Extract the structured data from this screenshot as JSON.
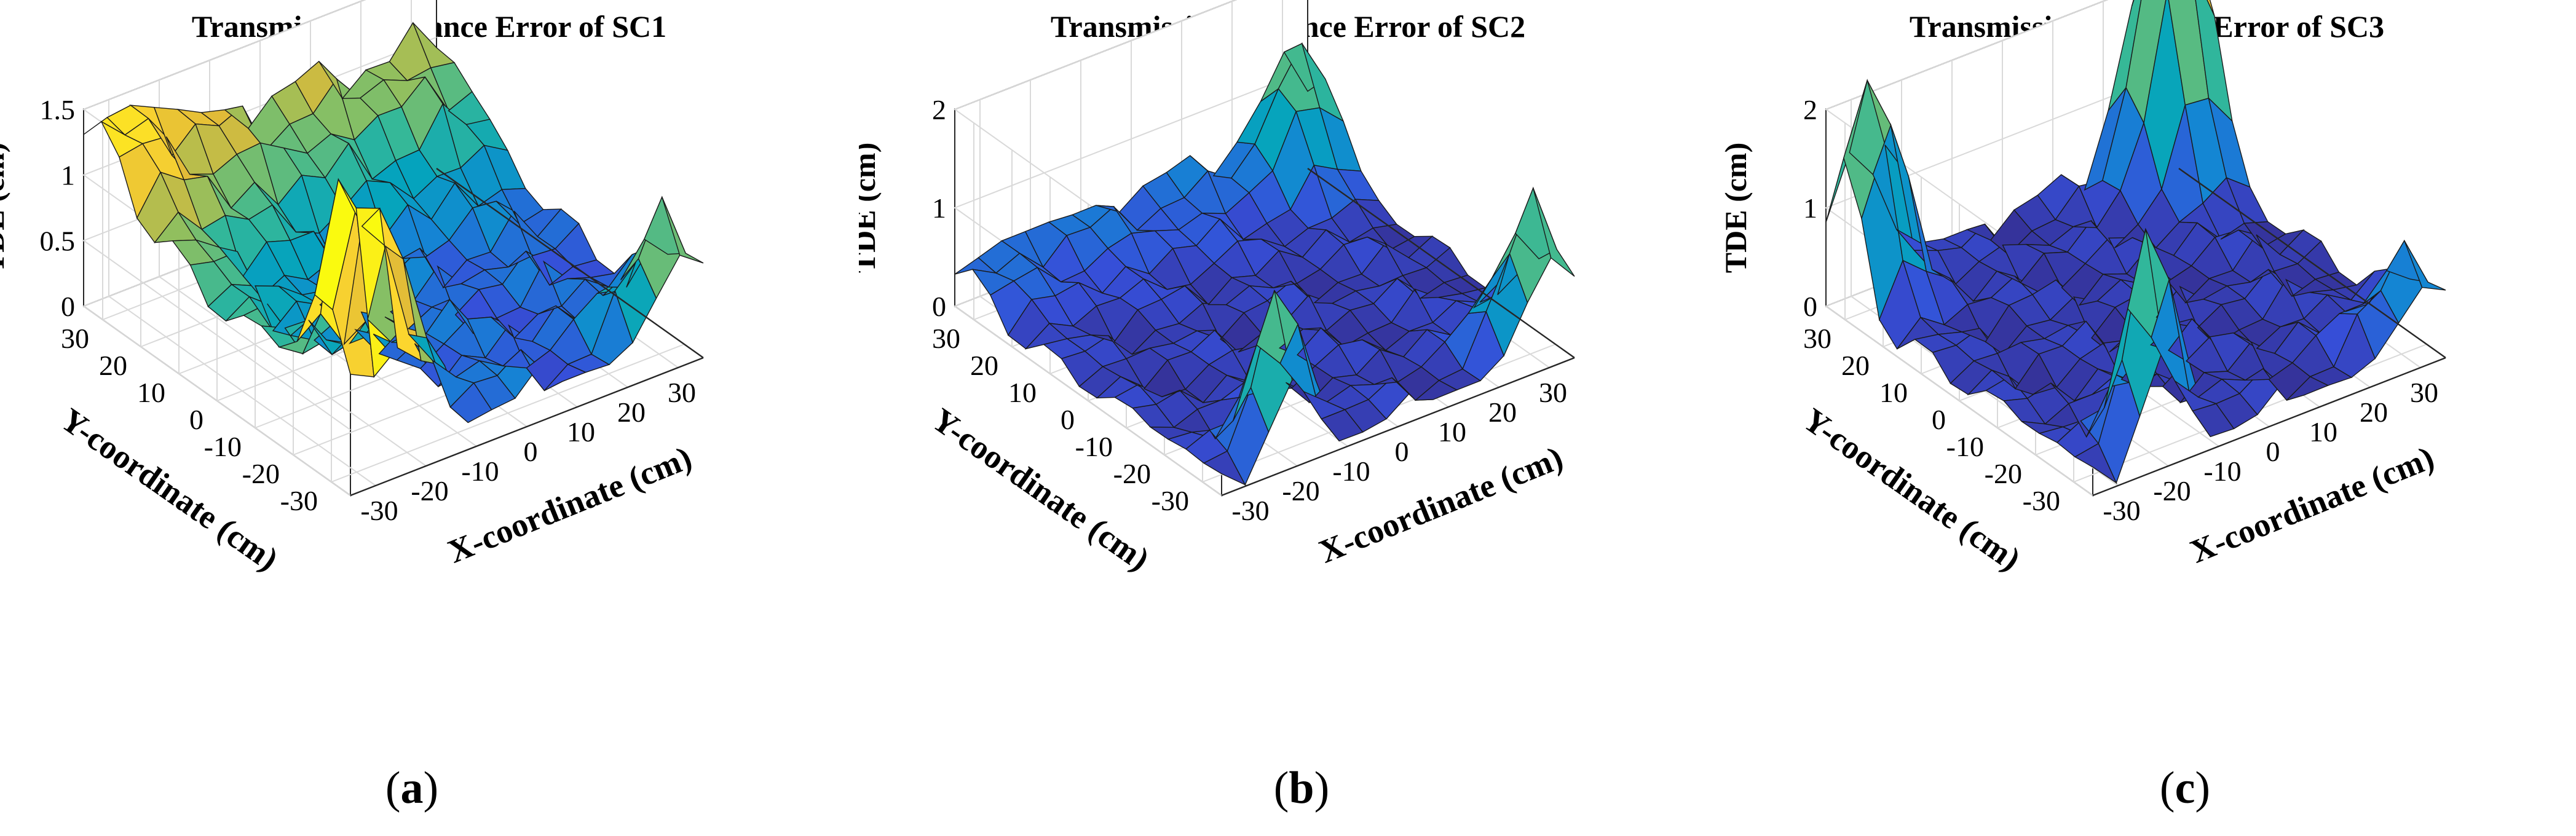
{
  "chart_data": [
    {
      "id": "a",
      "type": "surface3d",
      "title": "Transmission Distance Error of SC1",
      "zlabel": "TDE (cm)",
      "xlabel": "X-coordinate (cm)",
      "ylabel": "Y-coordinate (cm)",
      "xlim": [
        -35,
        35
      ],
      "ylim": [
        -35,
        35
      ],
      "zlim": [
        0,
        1.5
      ],
      "xticks": [
        "-30",
        "-20",
        "-10",
        "0",
        "10",
        "20",
        "30"
      ],
      "yticks": [
        "-30",
        "-20",
        "-10",
        "0",
        "10",
        "20",
        "30"
      ],
      "zticks": [
        "0",
        "0.5",
        "1",
        "1.5"
      ],
      "zmax_color": 1.5,
      "features": [
        {
          "kind": "base",
          "value": 0.25
        },
        {
          "kind": "wave",
          "amp": 0.18
        },
        {
          "kind": "ridge",
          "edge": "y+",
          "amp": 0.75,
          "width": 14
        },
        {
          "kind": "ridge",
          "edge": "x-",
          "amp": 0.45,
          "width": 14
        },
        {
          "kind": "peak",
          "x": -30,
          "y": -28,
          "amp": 1.45,
          "width": 4
        },
        {
          "kind": "peak",
          "x": -22,
          "y": -28,
          "amp": 1.1,
          "width": 4
        },
        {
          "kind": "peak",
          "x": 30,
          "y": -30,
          "amp": 0.9,
          "width": 5
        }
      ],
      "figure_label": "a"
    },
    {
      "id": "b",
      "type": "surface3d",
      "title": "Transmission Distance Error of SC2",
      "zlabel": "TDE (cm)",
      "xlabel": "X-coordinate (cm)",
      "ylabel": "Y-coordinate (cm)",
      "xlim": [
        -35,
        35
      ],
      "ylim": [
        -35,
        35
      ],
      "zlim": [
        0,
        2
      ],
      "xticks": [
        "-30",
        "-20",
        "-10",
        "0",
        "10",
        "20",
        "30"
      ],
      "yticks": [
        "-30",
        "-20",
        "-10",
        "0",
        "10",
        "20",
        "30"
      ],
      "zticks": [
        "0",
        "1",
        "2"
      ],
      "zmax_color": 2.2,
      "features": [
        {
          "kind": "base",
          "value": 0.15
        },
        {
          "kind": "wave",
          "amp": 0.16
        },
        {
          "kind": "ridge",
          "edge": "y+",
          "amp": 0.3,
          "width": 10
        },
        {
          "kind": "peak",
          "x": 30,
          "y": 30,
          "amp": 1.1,
          "width": 5
        },
        {
          "kind": "peak",
          "x": -20,
          "y": -30,
          "amp": 1.6,
          "width": 4
        },
        {
          "kind": "peak",
          "x": 30,
          "y": -30,
          "amp": 1.5,
          "width": 5
        }
      ],
      "figure_label": "b"
    },
    {
      "id": "c",
      "type": "surface3d",
      "title": "Transmission Distance Error of SC3",
      "zlabel": "TDE (cm)",
      "xlabel": "X-coordinate (cm)",
      "ylabel": "Y-coordinate (cm)",
      "xlim": [
        -35,
        35
      ],
      "ylim": [
        -35,
        35
      ],
      "zlim": [
        0,
        2
      ],
      "xticks": [
        "-30",
        "-20",
        "-10",
        "0",
        "10",
        "20",
        "30"
      ],
      "yticks": [
        "-30",
        "-20",
        "-10",
        "0",
        "10",
        "20",
        "30"
      ],
      "zticks": [
        "0",
        "1",
        "2"
      ],
      "zmax_color": 3.2,
      "features": [
        {
          "kind": "base",
          "value": 0.2
        },
        {
          "kind": "wave",
          "amp": 0.2
        },
        {
          "kind": "peak",
          "x": 30,
          "y": 30,
          "amp": 3.1,
          "width": 6
        },
        {
          "kind": "peak",
          "x": -30,
          "y": 30,
          "amp": 2.2,
          "width": 5
        },
        {
          "kind": "peak",
          "x": -20,
          "y": -30,
          "amp": 2.2,
          "width": 4
        },
        {
          "kind": "peak",
          "x": 30,
          "y": -30,
          "amp": 0.9,
          "width": 5
        }
      ],
      "figure_label": "c"
    }
  ]
}
